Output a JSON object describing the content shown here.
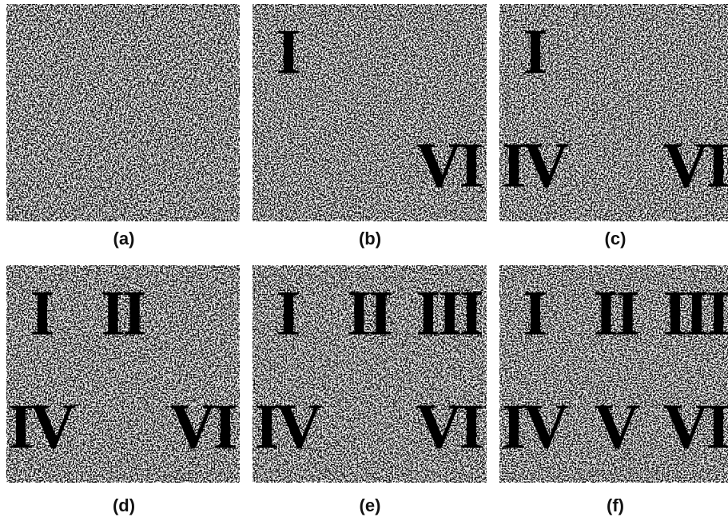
{
  "panels": [
    {
      "label": "(a)",
      "numerals": []
    },
    {
      "label": "(b)",
      "numerals": [
        "I",
        "VI"
      ]
    },
    {
      "label": "(c)",
      "numerals": [
        "I",
        "IV",
        "VI"
      ]
    },
    {
      "label": "(d)",
      "numerals": [
        "I",
        "II",
        "IV",
        "VI"
      ]
    },
    {
      "label": "(e)",
      "numerals": [
        "I",
        "II",
        "III",
        "IV",
        "VI"
      ]
    },
    {
      "label": "(f)",
      "numerals": [
        "I",
        "II",
        "III",
        "IV",
        "V",
        "VI"
      ]
    }
  ]
}
